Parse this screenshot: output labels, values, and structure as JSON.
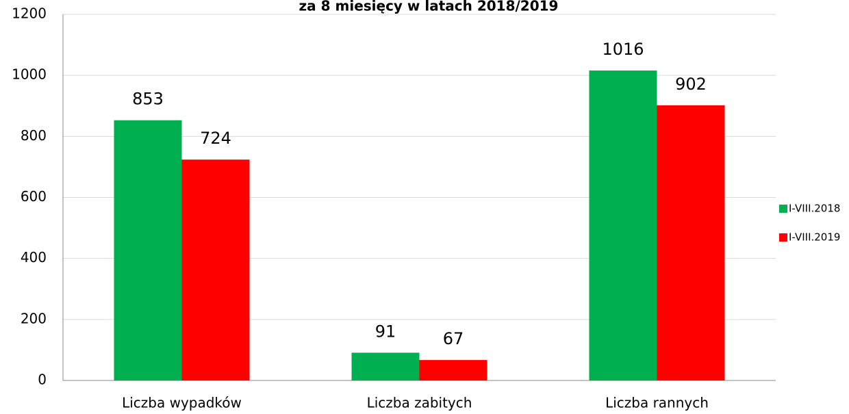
{
  "chart_data": {
    "type": "bar",
    "title": "za 8 miesięcy w latach 2018/2019",
    "categories": [
      "Liczba wypadków",
      "Liczba zabitych",
      "Liczba rannych"
    ],
    "series": [
      {
        "name": "I-VIII.2018",
        "color": "#00b050",
        "values": [
          853,
          91,
          1016
        ]
      },
      {
        "name": "I-VIII.2019",
        "color": "#ff0000",
        "values": [
          724,
          67,
          902
        ]
      }
    ],
    "ylim": [
      0,
      1200
    ],
    "yticks": [
      0,
      200,
      400,
      600,
      800,
      1000,
      1200
    ],
    "grid": true,
    "legend": "right"
  }
}
